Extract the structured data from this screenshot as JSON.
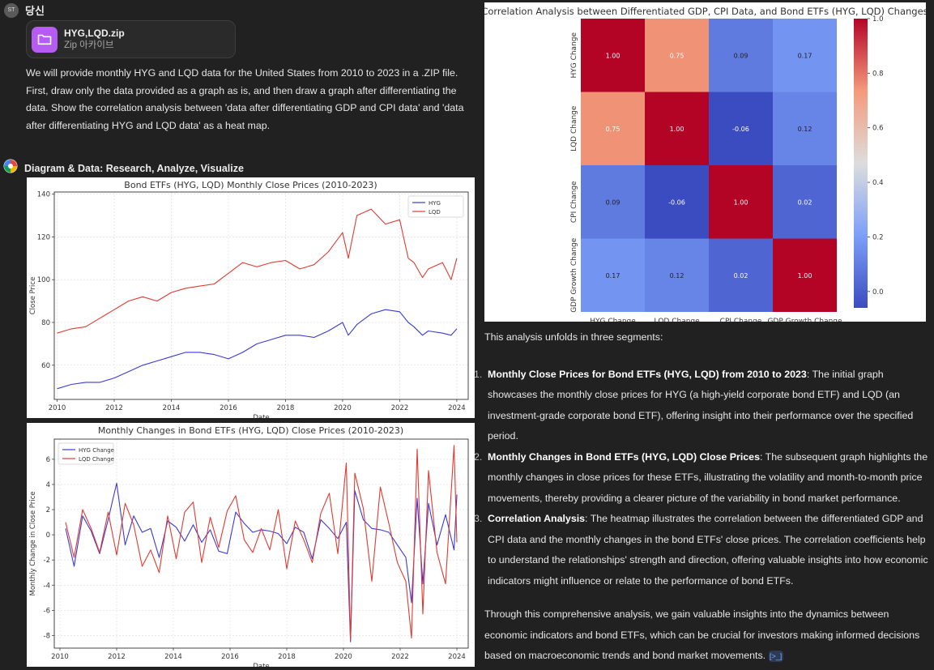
{
  "user": {
    "avatar": "ST",
    "name": "당신"
  },
  "attachment": {
    "name": "HYG,LQD.zip",
    "type": "Zip 아카이브",
    "icon": "folder-icon"
  },
  "prompt": "We will provide monthly HYG and LQD data for the United States from 2010 to 2023 in a .ZIP file. First, draw only the data provided as a graph as is, and then draw a graph after differentiating the data. Show the correlation analysis between 'data after differentiating GDP and CPI data' and 'data after differentiating HYG and LQD data' as a heat map.",
  "assistant": {
    "name": "Diagram & Data: Research, Analyze, Visualize",
    "icon": "diagram-logo-icon"
  },
  "colors": {
    "hyg": "#3a3ad6",
    "lqd": "#e03a32"
  },
  "chart_data": [
    {
      "type": "line",
      "title": "Bond ETFs (HYG, LQD) Monthly Close Prices (2010-2023)",
      "xlabel": "Date",
      "ylabel": "Close Price",
      "xlim": [
        2009.9,
        2024.4
      ],
      "ylim": [
        44,
        141
      ],
      "x_ticks": [
        "2010",
        "2012",
        "2014",
        "2016",
        "2018",
        "2020",
        "2022",
        "2024"
      ],
      "y_ticks": [
        "60",
        "80",
        "100",
        "120",
        "140"
      ],
      "grid": true,
      "legend": "top-right",
      "series": [
        {
          "name": "HYG",
          "x": [
            2010.0,
            2010.5,
            2011.0,
            2011.5,
            2012.0,
            2012.5,
            2013.0,
            2013.5,
            2014.0,
            2014.5,
            2015.0,
            2015.5,
            2016.0,
            2016.5,
            2017.0,
            2017.5,
            2018.0,
            2018.5,
            2019.0,
            2019.5,
            2020.0,
            2020.2,
            2020.5,
            2021.0,
            2021.5,
            2022.0,
            2022.3,
            2022.5,
            2022.8,
            2023.0,
            2023.5,
            2023.8,
            2024.0
          ],
          "values": [
            49,
            51,
            52,
            52,
            54,
            57,
            60,
            62,
            64,
            66,
            66,
            65,
            63,
            66,
            70,
            72,
            74,
            74,
            73,
            76,
            80,
            74,
            79,
            84,
            86,
            85,
            80,
            78,
            74,
            76,
            75,
            74,
            77
          ]
        },
        {
          "name": "LQD",
          "x": [
            2010.0,
            2010.5,
            2011.0,
            2011.5,
            2012.0,
            2012.5,
            2013.0,
            2013.5,
            2014.0,
            2014.5,
            2015.0,
            2015.5,
            2016.0,
            2016.5,
            2017.0,
            2017.5,
            2018.0,
            2018.5,
            2019.0,
            2019.5,
            2020.0,
            2020.2,
            2020.5,
            2021.0,
            2021.5,
            2022.0,
            2022.3,
            2022.5,
            2022.8,
            2023.0,
            2023.5,
            2023.8,
            2024.0
          ],
          "values": [
            75,
            77,
            78,
            82,
            86,
            90,
            92,
            90,
            94,
            96,
            97,
            98,
            103,
            108,
            106,
            108,
            109,
            105,
            107,
            113,
            122,
            110,
            130,
            133,
            126,
            128,
            110,
            108,
            101,
            105,
            108,
            100,
            110
          ]
        }
      ]
    },
    {
      "type": "line",
      "title": "Monthly Changes in Bond ETFs (HYG, LQD) Close Prices (2010-2023)",
      "xlabel": "Date",
      "ylabel": "Monthly Change in Close Price",
      "xlim": [
        2009.8,
        2024.4
      ],
      "ylim": [
        -9,
        7.6
      ],
      "x_ticks": [
        "2010",
        "2012",
        "2014",
        "2016",
        "2018",
        "2020",
        "2022",
        "2024"
      ],
      "y_ticks": [
        "-8",
        "-6",
        "-4",
        "-2",
        "0",
        "2",
        "4",
        "6"
      ],
      "grid": true,
      "legend": "top-left",
      "series": [
        {
          "name": "HYG Change",
          "x": [
            2010.2,
            2010.5,
            2010.8,
            2011.1,
            2011.4,
            2011.7,
            2012.0,
            2012.3,
            2012.6,
            2012.9,
            2013.2,
            2013.5,
            2013.8,
            2014.1,
            2014.4,
            2014.7,
            2015.0,
            2015.3,
            2015.6,
            2015.9,
            2016.2,
            2016.5,
            2016.8,
            2017.1,
            2017.4,
            2017.7,
            2018.0,
            2018.3,
            2018.6,
            2018.9,
            2019.2,
            2019.5,
            2019.8,
            2020.1,
            2020.25,
            2020.4,
            2020.7,
            2021.0,
            2021.3,
            2021.6,
            2021.9,
            2022.2,
            2022.4,
            2022.6,
            2022.8,
            2023.0,
            2023.3,
            2023.6,
            2023.9,
            2024.0
          ],
          "values": [
            0.5,
            -2.5,
            1.5,
            0.3,
            -1.5,
            1.2,
            4.1,
            -0.8,
            1.5,
            0.2,
            0.5,
            -1.8,
            1.1,
            0.6,
            -0.5,
            0.8,
            -0.6,
            0.4,
            -1.3,
            -1.5,
            1.8,
            0.9,
            0.2,
            0.4,
            0.3,
            0.1,
            -0.7,
            0.6,
            0.2,
            -1.9,
            1.2,
            0.5,
            -0.3,
            1.0,
            -8.5,
            3.5,
            1.2,
            0.5,
            0.4,
            0.2,
            -0.8,
            -1.8,
            -5.4,
            2.9,
            -3.9,
            2.5,
            -0.8,
            1.6,
            -1.2,
            3.2
          ]
        },
        {
          "name": "LQD Change",
          "x": [
            2010.2,
            2010.5,
            2010.8,
            2011.1,
            2011.4,
            2011.7,
            2012.0,
            2012.3,
            2012.6,
            2012.9,
            2013.2,
            2013.5,
            2013.8,
            2014.1,
            2014.4,
            2014.7,
            2015.0,
            2015.3,
            2015.6,
            2015.9,
            2016.2,
            2016.5,
            2016.8,
            2017.1,
            2017.4,
            2017.7,
            2018.0,
            2018.3,
            2018.6,
            2018.9,
            2019.2,
            2019.5,
            2019.8,
            2020.1,
            2020.25,
            2020.4,
            2020.7,
            2021.0,
            2021.3,
            2021.6,
            2021.9,
            2022.2,
            2022.4,
            2022.6,
            2022.8,
            2023.0,
            2023.3,
            2023.6,
            2023.9,
            2024.0
          ],
          "values": [
            1.0,
            -1.8,
            2.0,
            0.5,
            -1.4,
            1.8,
            -1.6,
            2.5,
            0.8,
            -2.5,
            -1.2,
            -3.0,
            1.5,
            -1.9,
            1.8,
            2.6,
            -2.2,
            1.4,
            -1.0,
            1.9,
            3.1,
            -0.4,
            -1.4,
            0.5,
            -1.2,
            2.0,
            -2.7,
            1.1,
            -0.4,
            -2.2,
            1.7,
            3.3,
            -1.5,
            5.7,
            -8.4,
            4.9,
            2.1,
            -3.7,
            3.8,
            0.9,
            -2.2,
            -3.7,
            -8.2,
            6.8,
            -6.3,
            5.1,
            -1.4,
            -3.9,
            7.1,
            -0.6
          ]
        }
      ]
    },
    {
      "type": "heatmap",
      "title": "Correlation Analysis between Differentiated GDP, CPI Data, and Bond ETFs (HYG, LQD) Changes",
      "x_labels": [
        "HYG Change",
        "LQD Change",
        "CPI Change",
        "GDP Growth Change"
      ],
      "y_labels": [
        "HYG Change",
        "LQD Change",
        "CPI Change",
        "GDP Growth Change"
      ],
      "matrix": [
        [
          "1.00",
          "0.75",
          "0.09",
          "0.17"
        ],
        [
          "0.75",
          "1.00",
          "-0.06",
          "0.12"
        ],
        [
          "0.09",
          "-0.06",
          "1.00",
          "0.02"
        ],
        [
          "0.17",
          "0.12",
          "0.02",
          "1.00"
        ]
      ],
      "colorbar_ticks": [
        "1.0",
        "0.8",
        "0.6",
        "0.4",
        "0.2",
        "0.0"
      ],
      "vmin": -0.06,
      "vmax": 1.0,
      "colormap": "coolwarm"
    }
  ],
  "analysis": {
    "intro": "This analysis unfolds in three segments:",
    "items": [
      {
        "num": "1.",
        "title": "Monthly Close Prices for Bond ETFs (HYG, LQD) from 2010 to 2023",
        "text": ": The initial graph showcases the monthly close prices for HYG (a high-yield corporate bond ETF) and LQD (an investment-grade corporate bond ETF), offering insight into their performance over the specified period."
      },
      {
        "num": "2.",
        "title": "Monthly Changes in Bond ETFs (HYG, LQD) Close Prices",
        "text": ": The subsequent graph highlights the monthly changes in close prices for these ETFs, illustrating the volatility and month-to-month price movements, thereby providing a clearer picture of the variability in bond market performance."
      },
      {
        "num": "3.",
        "title": "Correlation Analysis",
        "text": ": The heatmap illustrates the correlation between the differentiated GDP and CPI data and the monthly changes in the bond ETFs' close prices. The correlation coefficients help to understand the relationships' strength and direction, offering valuable insights into how economic indicators might influence or relate to the performance of bond ETFs."
      }
    ],
    "outro": "Through this comprehensive analysis, we gain valuable insights into the dynamics between economic indicators and bond ETFs, which can be crucial for investors making informed decisions based on macroeconomic trends and bond market movements.",
    "cite_icon": "[>_]"
  }
}
